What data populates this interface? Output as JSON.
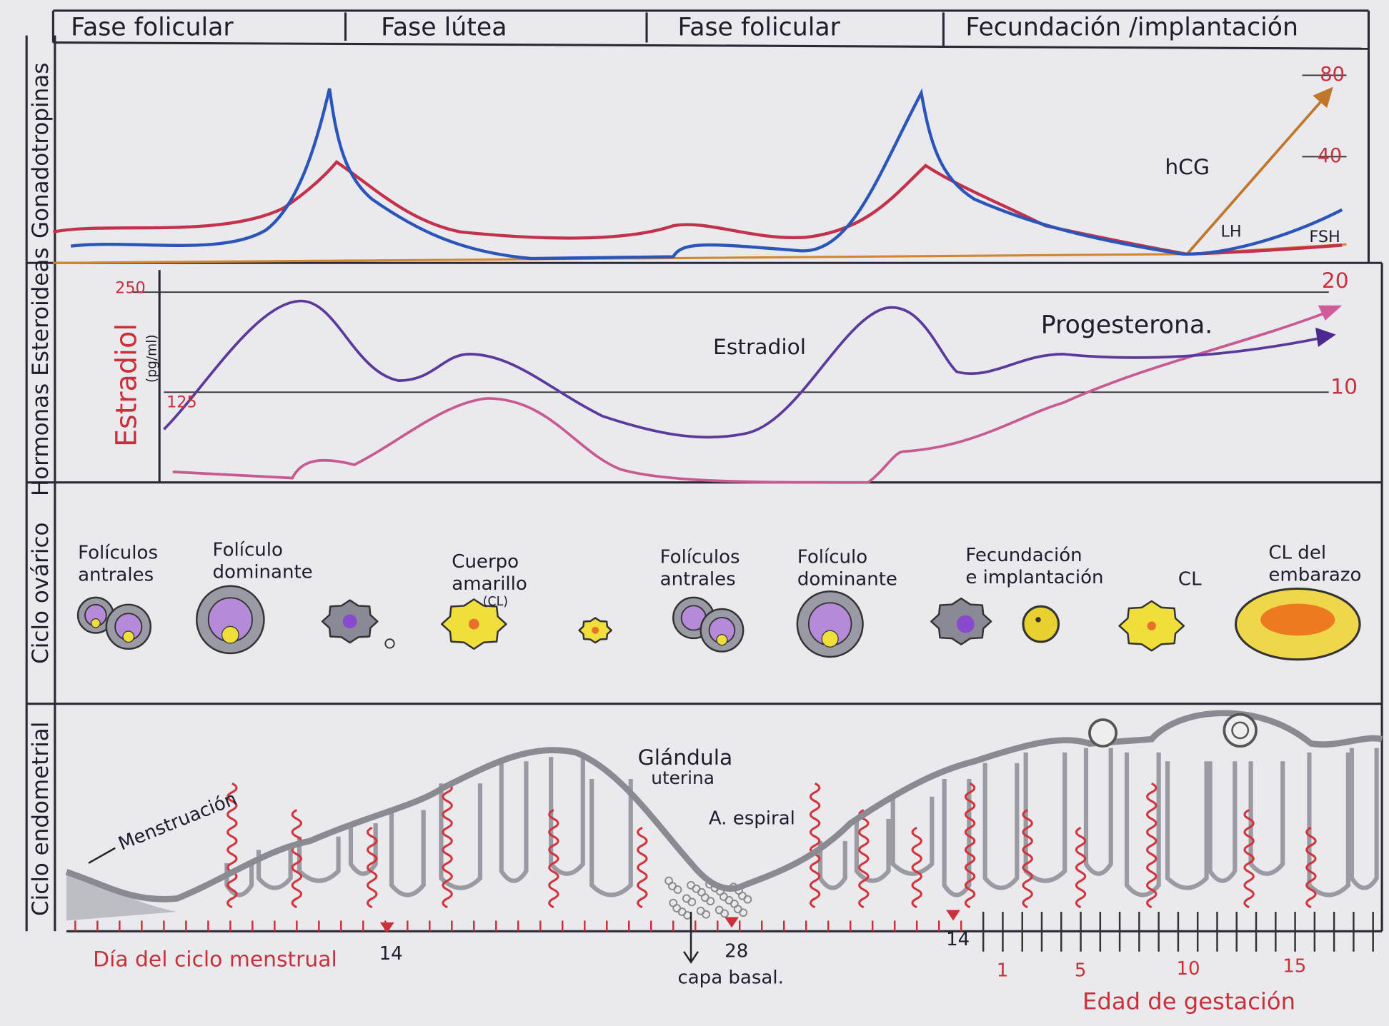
{
  "phases": [
    "Fase folicular",
    "Fase lútea",
    "Fase folicular",
    "Fecundación /implantación"
  ],
  "rows": [
    "Gonadotropinas",
    "Hormonas Esteroideas",
    "Ciclo ovárico",
    "Ciclo endometrial"
  ],
  "gonadotropins": {
    "labels": [
      "hCG",
      "LH",
      "FSH"
    ],
    "scale": [
      "80",
      "40"
    ]
  },
  "steroids": {
    "axis_title": "Estradiol",
    "axis_unit": "(pg/ml)",
    "left_scale": [
      "250",
      "125"
    ],
    "right_scale": [
      "20",
      "10"
    ],
    "labels": [
      "Estradiol",
      "Progesterona."
    ]
  },
  "ovarian": {
    "labels": [
      [
        "Folículos",
        "antrales"
      ],
      [
        "Folículo",
        "dominante"
      ],
      [
        "Cuerpo",
        "amarillo",
        "(CL)"
      ],
      [
        "Folículos",
        "antrales"
      ],
      [
        "Folículo",
        "dominante"
      ],
      [
        "Fecundación",
        "e implantación"
      ],
      [
        "CL"
      ],
      [
        "CL del",
        "embarazo"
      ]
    ]
  },
  "endometrial": {
    "labels": [
      "Menstruación",
      [
        "Glándula",
        "uterina"
      ],
      "A. espiral",
      "capa basal."
    ]
  },
  "axis": {
    "title": "Día del ciclo menstrual",
    "days": [
      "14",
      "28",
      "14"
    ],
    "gestation_title": "Edad de gestación",
    "weeks": [
      "1",
      "5",
      "10",
      "15"
    ]
  }
}
